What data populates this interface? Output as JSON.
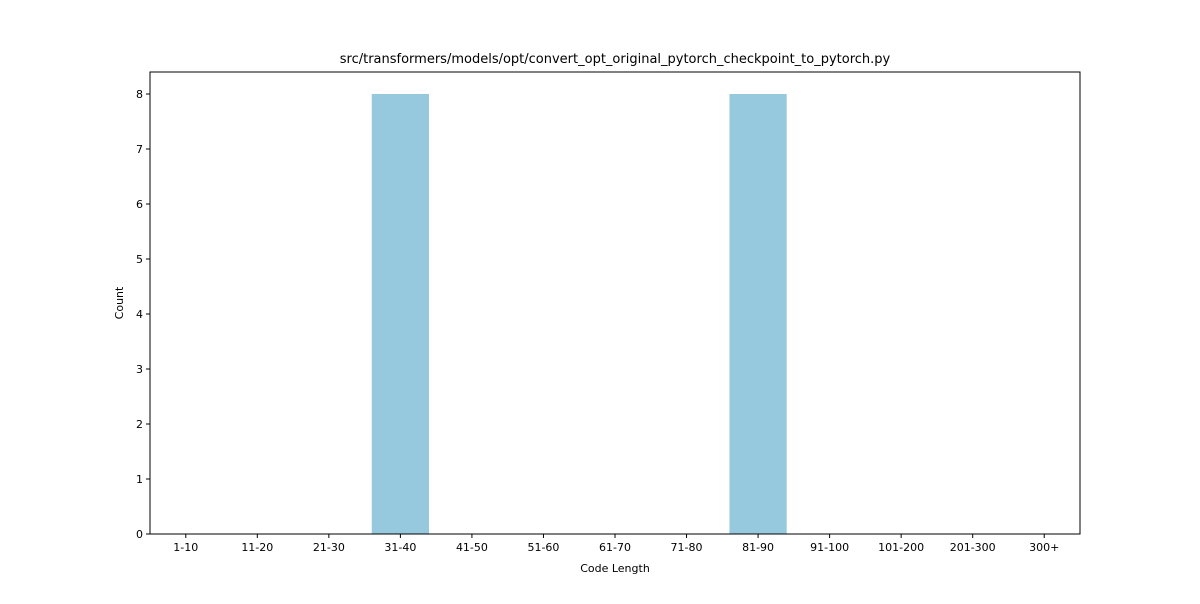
{
  "chart_data": {
    "type": "bar",
    "title": "src/transformers/models/opt/convert_opt_original_pytorch_checkpoint_to_pytorch.py",
    "xlabel": "Code Length",
    "ylabel": "Count",
    "categories": [
      "1-10",
      "11-20",
      "21-30",
      "31-40",
      "41-50",
      "51-60",
      "61-70",
      "71-80",
      "81-90",
      "91-100",
      "101-200",
      "201-300",
      "300+"
    ],
    "values": [
      0,
      0,
      0,
      8,
      0,
      0,
      0,
      0,
      8,
      0,
      0,
      0,
      0
    ],
    "ylim": [
      0,
      8.4
    ],
    "yticks": [
      0,
      1,
      2,
      3,
      4,
      5,
      6,
      7,
      8
    ],
    "bar_color": "#96c9de",
    "grid": false,
    "legend": "none"
  }
}
